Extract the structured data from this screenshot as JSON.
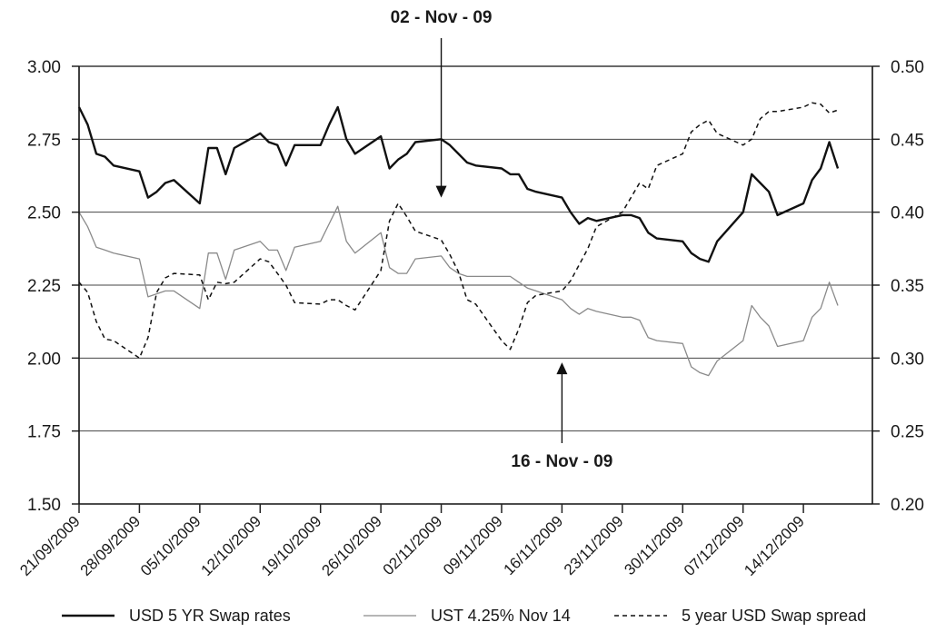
{
  "chart_data": {
    "type": "line",
    "x": [
      "21/09/2009",
      "22/09/2009",
      "23/09/2009",
      "24/09/2009",
      "25/09/2009",
      "28/09/2009",
      "29/09/2009",
      "30/09/2009",
      "01/10/2009",
      "02/10/2009",
      "05/10/2009",
      "06/10/2009",
      "07/10/2009",
      "08/10/2009",
      "09/10/2009",
      "12/10/2009",
      "13/10/2009",
      "14/10/2009",
      "15/10/2009",
      "16/10/2009",
      "19/10/2009",
      "20/10/2009",
      "21/10/2009",
      "22/10/2009",
      "23/10/2009",
      "26/10/2009",
      "27/10/2009",
      "28/10/2009",
      "29/10/2009",
      "30/10/2009",
      "02/11/2009",
      "03/11/2009",
      "04/11/2009",
      "05/11/2009",
      "06/11/2009",
      "09/11/2009",
      "10/11/2009",
      "11/11/2009",
      "12/11/2009",
      "13/11/2009",
      "16/11/2009",
      "17/11/2009",
      "18/11/2009",
      "19/11/2009",
      "20/11/2009",
      "23/11/2009",
      "24/11/2009",
      "25/11/2009",
      "26/11/2009",
      "27/11/2009",
      "30/11/2009",
      "01/12/2009",
      "02/12/2009",
      "03/12/2009",
      "04/12/2009",
      "07/12/2009",
      "08/12/2009",
      "09/12/2009",
      "10/12/2009",
      "11/12/2009",
      "14/12/2009",
      "15/12/2009",
      "16/12/2009",
      "17/12/2009",
      "18/12/2009"
    ],
    "x_ticks": [
      "21/09/2009",
      "28/09/2009",
      "05/10/2009",
      "12/10/2009",
      "19/10/2009",
      "26/10/2009",
      "02/11/2009",
      "09/11/2009",
      "16/11/2009",
      "23/11/2009",
      "30/11/2009",
      "07/12/2009",
      "14/12/2009"
    ],
    "y_left": {
      "ylim": [
        1.5,
        3.0
      ],
      "ticks": [
        "1.50",
        "1.75",
        "2.00",
        "2.25",
        "2.50",
        "2.75",
        "3.00"
      ]
    },
    "y_right": {
      "ylim": [
        0.2,
        0.5
      ],
      "ticks": [
        "0.20",
        "0.25",
        "0.30",
        "0.35",
        "0.40",
        "0.45",
        "0.50"
      ]
    },
    "grid": "horizontal",
    "legend_position": "bottom",
    "series": [
      {
        "name": "USD 5 YR Swap rates",
        "axis": "left",
        "style": "solid-thick",
        "color": "#111111",
        "values": [
          2.86,
          2.8,
          2.7,
          2.69,
          2.66,
          2.64,
          2.55,
          2.57,
          2.6,
          2.61,
          2.53,
          2.72,
          2.72,
          2.63,
          2.72,
          2.77,
          2.74,
          2.73,
          2.66,
          2.73,
          2.73,
          2.8,
          2.86,
          2.75,
          2.7,
          2.76,
          2.65,
          2.68,
          2.7,
          2.74,
          2.75,
          2.73,
          2.7,
          2.67,
          2.66,
          2.65,
          2.63,
          2.63,
          2.58,
          2.57,
          2.55,
          2.5,
          2.46,
          2.48,
          2.47,
          2.49,
          2.49,
          2.48,
          2.43,
          2.41,
          2.4,
          2.36,
          2.34,
          2.33,
          2.4,
          2.5,
          2.63,
          2.6,
          2.57,
          2.49,
          2.53,
          2.61,
          2.65,
          2.74,
          2.65
        ]
      },
      {
        "name": "UST 4.25% Nov 14",
        "axis": "left",
        "style": "solid-thin",
        "color": "#8a8a8a",
        "values": [
          2.5,
          2.45,
          2.38,
          2.37,
          2.36,
          2.34,
          2.21,
          2.22,
          2.23,
          2.23,
          2.17,
          2.36,
          2.36,
          2.27,
          2.37,
          2.4,
          2.37,
          2.37,
          2.3,
          2.38,
          2.4,
          2.46,
          2.52,
          2.4,
          2.36,
          2.43,
          2.31,
          2.29,
          2.29,
          2.34,
          2.35,
          2.31,
          2.29,
          2.28,
          2.28,
          2.28,
          2.28,
          2.26,
          2.24,
          2.23,
          2.2,
          2.17,
          2.15,
          2.17,
          2.16,
          2.14,
          2.14,
          2.13,
          2.07,
          2.06,
          2.05,
          1.97,
          1.95,
          1.94,
          1.99,
          2.06,
          2.18,
          2.14,
          2.11,
          2.04,
          2.06,
          2.14,
          2.17,
          2.26,
          2.18
        ]
      },
      {
        "name": "5 year USD Swap spread",
        "axis": "right",
        "style": "dashed",
        "color": "#111111",
        "values": [
          0.352,
          0.345,
          0.325,
          0.313,
          0.312,
          0.3,
          0.314,
          0.345,
          0.355,
          0.358,
          0.357,
          0.34,
          0.352,
          0.351,
          0.352,
          0.368,
          0.366,
          0.358,
          0.35,
          0.338,
          0.337,
          0.34,
          0.34,
          0.336,
          0.333,
          0.36,
          0.394,
          0.406,
          0.397,
          0.387,
          0.381,
          0.371,
          0.359,
          0.34,
          0.337,
          0.312,
          0.306,
          0.32,
          0.338,
          0.343,
          0.346,
          0.353,
          0.364,
          0.375,
          0.39,
          0.4,
          0.41,
          0.42,
          0.416,
          0.432,
          0.44,
          0.455,
          0.46,
          0.463,
          0.454,
          0.446,
          0.45,
          0.464,
          0.469,
          0.469,
          0.472,
          0.475,
          0.474,
          0.468,
          0.47
        ]
      }
    ],
    "annotations": [
      {
        "label": "02 - Nov - 09",
        "x": "02/11/2009",
        "direction": "down",
        "axis": "right",
        "y": 0.41
      },
      {
        "label": "16 - Nov - 09",
        "x": "16/11/2009",
        "direction": "up",
        "axis": "right",
        "y": 0.297
      }
    ]
  }
}
